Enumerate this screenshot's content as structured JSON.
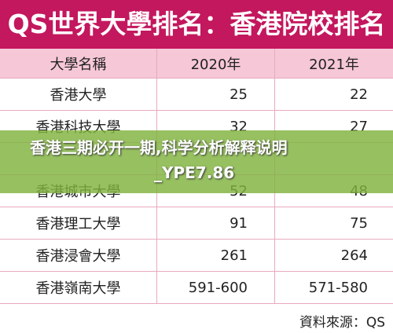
{
  "header": {
    "title": "QS世界大學排名：香港院校排名"
  },
  "table": {
    "columns": [
      "大學名稱",
      "2020年",
      "2021年"
    ],
    "rows": [
      [
        "香港大學",
        "25",
        "22"
      ],
      [
        "香港科技大學",
        "32",
        "27"
      ],
      [
        null,
        null,
        null
      ],
      [
        "香港城市大學",
        "52",
        "48"
      ],
      [
        "香港理工大學",
        "91",
        "75"
      ],
      [
        "香港浸會大學",
        "261",
        "264"
      ],
      [
        "香港嶺南大學",
        "591-600",
        "571-580"
      ]
    ]
  },
  "overlay": {
    "lines": [
      "香港三期必开一期,科学分析解释说明",
      "_YPE7.86"
    ]
  },
  "footer": {
    "source": "資料來源：QS"
  }
}
